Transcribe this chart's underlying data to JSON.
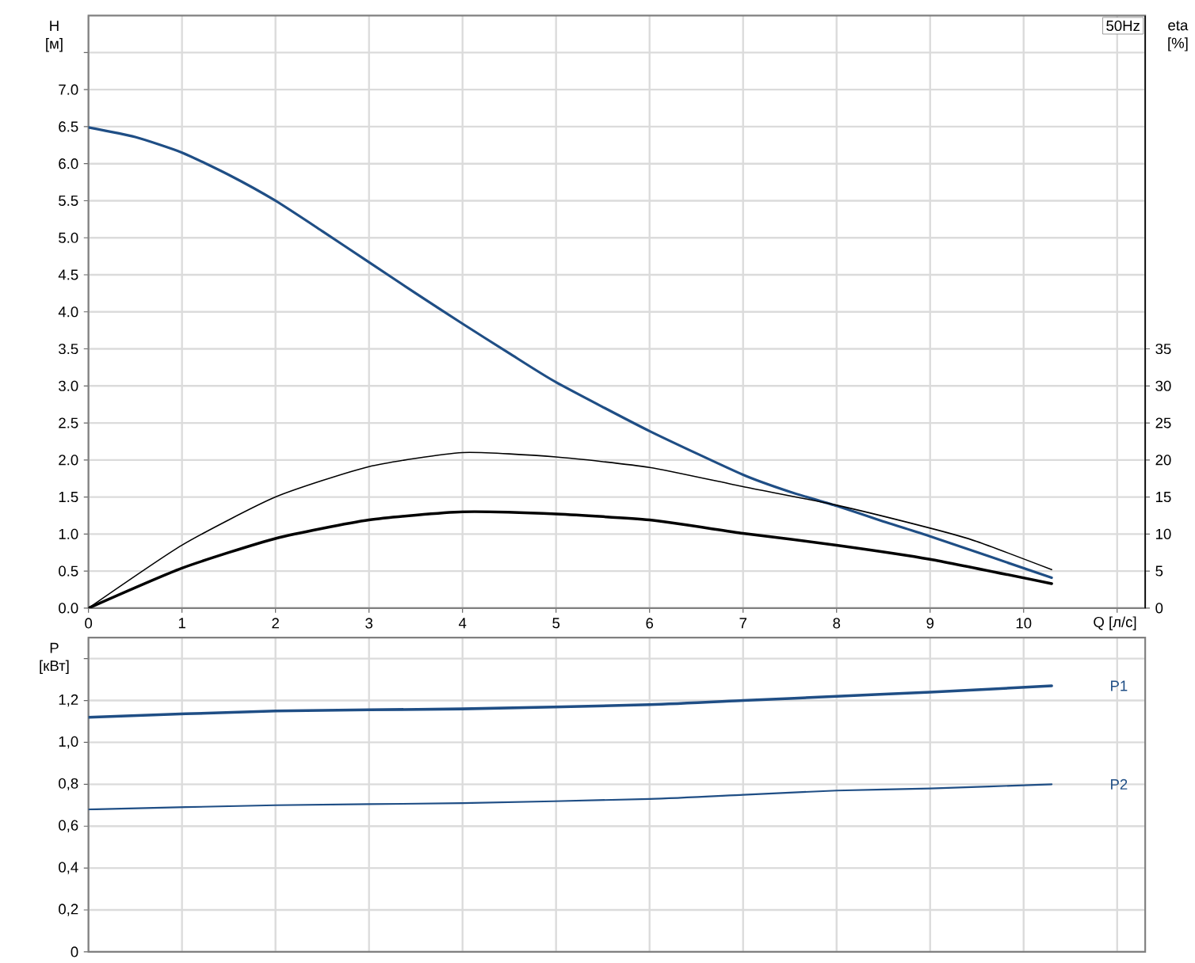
{
  "chart_data": [
    {
      "type": "line",
      "xlabel": "Q [л/с]",
      "ylabel": "H [м]",
      "y2label": "eta [%]",
      "annotations": [
        "50Hz"
      ],
      "xlim": [
        0,
        11.3
      ],
      "xticks": [
        0,
        1,
        2,
        3,
        4,
        5,
        6,
        7,
        8,
        9,
        10,
        {
          "value": 11,
          "label": null
        }
      ],
      "ylim": [
        0,
        8
      ],
      "yticks": [
        {
          "value": 0,
          "label": "0.0"
        },
        0.5,
        {
          "value": 1,
          "label": "1.0"
        },
        1.5,
        {
          "value": 2,
          "label": "2.0"
        },
        2.5,
        {
          "value": 3,
          "label": "3.0"
        },
        3.5,
        {
          "value": 4,
          "label": "4.0"
        },
        4.5,
        {
          "value": 5,
          "label": "5.0"
        },
        5.5,
        {
          "value": 6,
          "label": "6.0"
        },
        6.5,
        {
          "value": 7,
          "label": "7.0"
        },
        {
          "value": 7.5,
          "label": null
        }
      ],
      "y2lim": [
        0,
        80
      ],
      "y2ticks": [
        0,
        5,
        10,
        15,
        20,
        25,
        30,
        35
      ],
      "grid": true,
      "series": [
        {
          "color": "#1f4e85",
          "x": [
            0,
            0.5,
            1,
            1.5,
            2,
            2.5,
            3,
            3.5,
            4,
            4.5,
            5,
            6,
            7,
            7.5,
            8,
            8.5,
            9,
            10.3
          ],
          "values": [
            6.49,
            6.36,
            6.15,
            5.85,
            5.5,
            5.09,
            4.67,
            4.25,
            3.84,
            3.44,
            3.05,
            2.39,
            1.8,
            1.57,
            1.38,
            1.17,
            0.97,
            0.41
          ]
        },
        {
          "color": "#000000",
          "axis": "y2",
          "x": [
            0,
            1,
            2,
            3,
            4,
            5,
            6,
            7,
            8,
            9,
            9.5,
            10.3
          ],
          "values": [
            0,
            8.5,
            15.0,
            19.1,
            21.0,
            20.4,
            19.0,
            16.4,
            13.9,
            10.8,
            9.0,
            5.2
          ]
        },
        {
          "color": "#000000",
          "axis": "y2",
          "x": [
            0,
            1,
            2,
            3,
            4,
            5,
            6,
            7,
            8,
            9,
            10.3
          ],
          "values": [
            0,
            5.4,
            9.4,
            11.9,
            13.0,
            12.7,
            11.9,
            10.1,
            8.5,
            6.6,
            3.3
          ]
        }
      ]
    },
    {
      "type": "line",
      "ylabel": "P [кВт]",
      "xlim": [
        0,
        11.3
      ],
      "xticks": [
        0,
        1,
        2,
        3,
        4,
        5,
        6,
        7,
        8,
        9,
        10,
        11
      ],
      "ylim": [
        0,
        1.5
      ],
      "yticks": [
        0,
        {
          "value": 0.2,
          "label": "0,2"
        },
        {
          "value": 0.4,
          "label": "0,4"
        },
        {
          "value": 0.6,
          "label": "0,6"
        },
        {
          "value": 0.8,
          "label": "0,8"
        },
        {
          "value": 1.0,
          "label": "1,0"
        },
        {
          "value": 1.2,
          "label": "1,2"
        },
        {
          "value": 1.4,
          "label": null
        }
      ],
      "grid": true,
      "tick_labels": "y",
      "series": [
        {
          "name": "P1",
          "color": "#1f4e85",
          "x": [
            0,
            2,
            4,
            6,
            7,
            8,
            9,
            10.3
          ],
          "values": [
            1.12,
            1.15,
            1.16,
            1.18,
            1.2,
            1.22,
            1.24,
            1.27
          ]
        },
        {
          "name": "P2",
          "color": "#1f4e85",
          "x": [
            0,
            2,
            4,
            6,
            7,
            8,
            9,
            10.3
          ],
          "values": [
            0.68,
            0.7,
            0.71,
            0.73,
            0.75,
            0.77,
            0.78,
            0.8
          ]
        }
      ]
    }
  ]
}
